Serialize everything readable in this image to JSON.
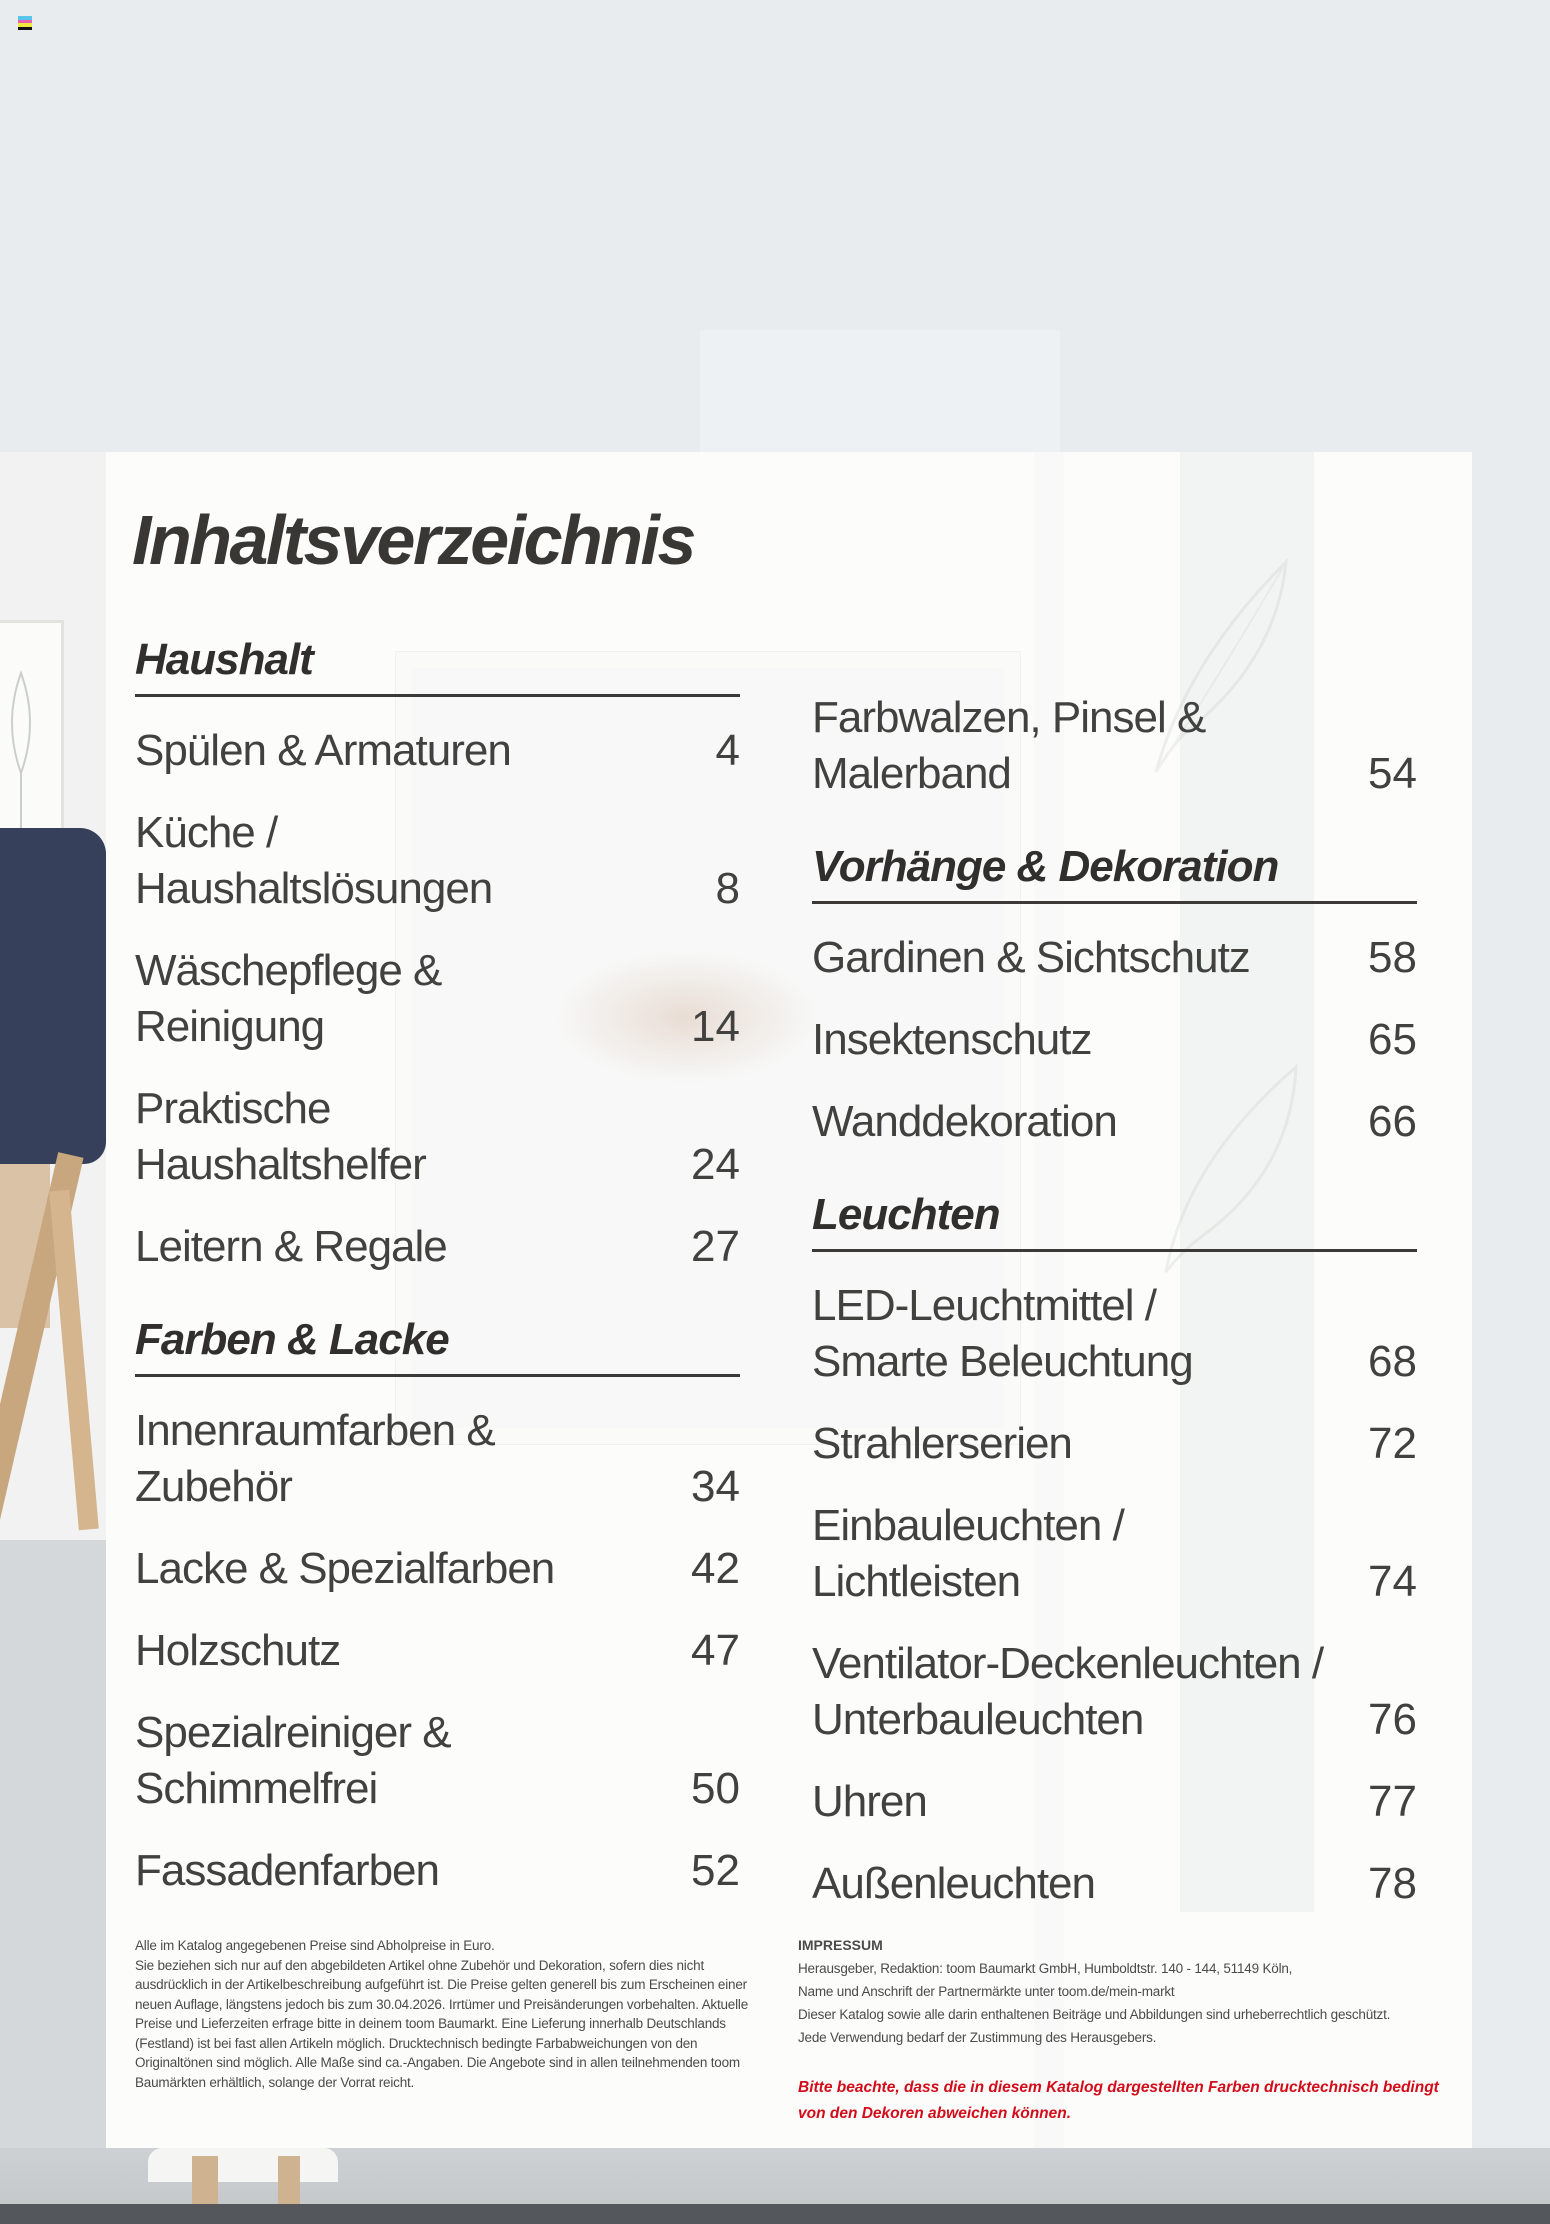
{
  "page": {
    "title": "Inhaltsverzeichnis"
  },
  "toc": {
    "columns": [
      {
        "sections": [
          {
            "heading": "Haushalt",
            "items": [
              {
                "lines": [
                  "Spülen & Armaturen"
                ],
                "page": "4"
              },
              {
                "lines": [
                  "Küche /",
                  "Haushaltslösungen"
                ],
                "page": "8"
              },
              {
                "lines": [
                  "Wäschepflege &",
                  "Reinigung"
                ],
                "page": "14"
              },
              {
                "lines": [
                  "Praktische",
                  "Haushaltshelfer"
                ],
                "page": "24"
              },
              {
                "lines": [
                  "Leitern & Regale"
                ],
                "page": "27"
              }
            ]
          },
          {
            "heading": "Farben & Lacke",
            "items": [
              {
                "lines": [
                  "Innenraumfarben &",
                  "Zubehör"
                ],
                "page": "34"
              },
              {
                "lines": [
                  "Lacke & Spezialfarben"
                ],
                "page": "42"
              },
              {
                "lines": [
                  "Holzschutz"
                ],
                "page": "47"
              },
              {
                "lines": [
                  "Spezialreiniger &",
                  "Schimmelfrei"
                ],
                "page": "50"
              },
              {
                "lines": [
                  "Fassadenfarben"
                ],
                "page": "52"
              }
            ]
          }
        ]
      },
      {
        "sections": [
          {
            "heading": "",
            "items": [
              {
                "lines": [
                  "Farbwalzen, Pinsel &",
                  "Malerband"
                ],
                "page": "54"
              }
            ]
          },
          {
            "heading": "Vorhänge & Dekoration",
            "items": [
              {
                "lines": [
                  "Gardinen & Sichtschutz"
                ],
                "page": "58"
              },
              {
                "lines": [
                  "Insektenschutz"
                ],
                "page": "65"
              },
              {
                "lines": [
                  "Wanddekoration"
                ],
                "page": "66"
              }
            ]
          },
          {
            "heading": "Leuchten",
            "items": [
              {
                "lines": [
                  "LED-Leuchtmittel /",
                  "Smarte Beleuchtung"
                ],
                "page": "68"
              },
              {
                "lines": [
                  "Strahlerserien"
                ],
                "page": "72"
              },
              {
                "lines": [
                  "Einbauleuchten /",
                  "Lichtleisten"
                ],
                "page": "74"
              },
              {
                "lines": [
                  "Ventilator-Deckenleuchten /",
                  "Unterbauleuchten"
                ],
                "page": "76"
              },
              {
                "lines": [
                  "Uhren"
                ],
                "page": "77"
              },
              {
                "lines": [
                  "Außenleuchten"
                ],
                "page": "78"
              }
            ]
          }
        ]
      }
    ]
  },
  "footer": {
    "price_note_lines": [
      "Alle im Katalog angegebenen Preise sind Abholpreise in Euro.",
      "Sie beziehen sich nur auf den abgebildeten Artikel ohne Zubehör und Dekoration, sofern dies nicht",
      "ausdrücklich in der Artikelbeschreibung aufgeführt ist. Die Preise gelten generell bis zum Erscheinen einer",
      "neuen Auflage, längstens jedoch bis zum 30.04.2026. Irrtümer und Preisänderungen vorbehalten. Aktuelle",
      "Preise und Lieferzeiten erfrage bitte in deinem toom Baumarkt. Eine Lieferung innerhalb Deutschlands",
      "(Festland) ist bei fast allen Artikeln möglich. Drucktechnisch bedingte Farbabweichungen von den",
      "Originaltönen sind möglich. Alle Maße sind ca.-Angaben. Die Angebote sind in allen teilnehmenden toom",
      "Baumärkten erhältlich, solange der Vorrat reicht."
    ],
    "impressum": {
      "heading": "IMPRESSUM",
      "lines": [
        "Herausgeber, Redaktion: toom Baumarkt GmbH, Humboldtstr. 140 - 144, 51149 Köln,",
        "Name und Anschrift der Partnermärkte unter toom.de/mein-markt",
        "Dieser Katalog sowie alle darin enthaltenen Beiträge und Abbildungen sind urheberrechtlich geschützt.",
        "Jede Verwendung bedarf der Zustimmung des Herausgebers."
      ]
    },
    "color_note_lines": [
      "Bitte beachte, dass die in diesem Katalog dargestellten Farben drucktechnisch bedingt",
      "von den Dekoren abweichen können."
    ]
  },
  "colors": {
    "accent_red": "#d40c1a",
    "text_dark": "#383734",
    "rule_dark": "#3b3a38"
  },
  "decor": {
    "print_mark_colors": [
      "#58c6ec",
      "#e763ad",
      "#f0e93e",
      "#141414"
    ]
  }
}
